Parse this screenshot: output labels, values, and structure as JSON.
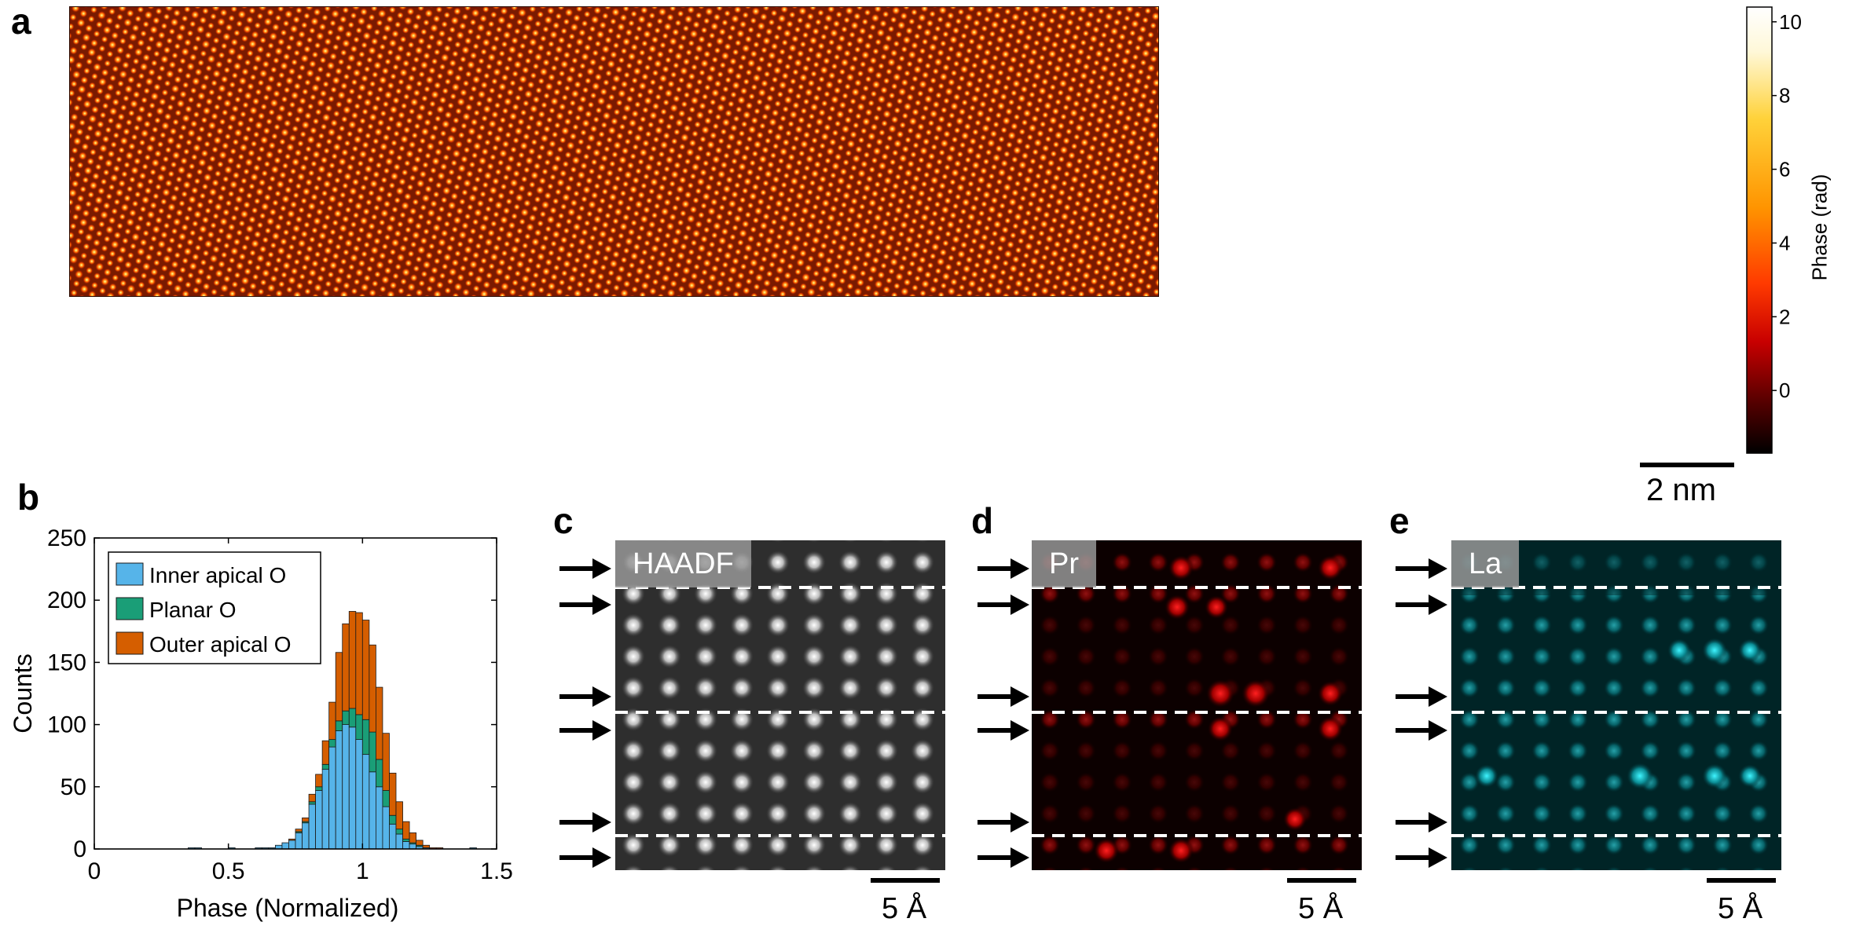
{
  "panels": {
    "a": {
      "letter": "a",
      "scalebar_label": "2 nm",
      "colorbar": {
        "label": "Phase (rad)",
        "ticks": [
          "10",
          "8",
          "6",
          "4",
          "2",
          "0"
        ],
        "tick_values": [
          10,
          8,
          6,
          4,
          2,
          0
        ],
        "range": [
          -1.7,
          10.4
        ]
      }
    },
    "b": {
      "letter": "b"
    },
    "c": {
      "letter": "c",
      "image_label": "HAADF",
      "scalebar_label": "5 Å"
    },
    "d": {
      "letter": "d",
      "image_label": "Pr",
      "scalebar_label": "5 Å"
    },
    "e": {
      "letter": "e",
      "image_label": "La",
      "scalebar_label": "5 Å"
    }
  },
  "chart_data": {
    "type": "bar",
    "stacked": true,
    "xlabel": "Phase (Normalized)",
    "ylabel": "Counts",
    "xlim": [
      0,
      1.5
    ],
    "ylim": [
      0,
      250
    ],
    "xticks": [
      "0",
      "0.5",
      "1",
      "1.5"
    ],
    "xtick_values": [
      0,
      0.5,
      1,
      1.5
    ],
    "yticks": [
      "0",
      "50",
      "100",
      "150",
      "200",
      "250"
    ],
    "ytick_values": [
      0,
      50,
      100,
      150,
      200,
      250
    ],
    "legend_position": "top-left",
    "bin_width": 0.025,
    "bin_starts": [
      0.35,
      0.375,
      0.4,
      0.425,
      0.45,
      0.475,
      0.5,
      0.525,
      0.55,
      0.575,
      0.6,
      0.625,
      0.65,
      0.675,
      0.7,
      0.725,
      0.75,
      0.775,
      0.8,
      0.825,
      0.85,
      0.875,
      0.9,
      0.925,
      0.95,
      0.975,
      1.0,
      1.025,
      1.05,
      1.075,
      1.1,
      1.125,
      1.15,
      1.175,
      1.2,
      1.225,
      1.25,
      1.275,
      1.3,
      1.325,
      1.35,
      1.375,
      1.4
    ],
    "series": [
      {
        "name": "Inner apical O",
        "color": "#56b4e9",
        "values": [
          1,
          1,
          0,
          0,
          0,
          0,
          1,
          0,
          0,
          0,
          1,
          1,
          1,
          3,
          5,
          7,
          13,
          21,
          36,
          47,
          64,
          82,
          95,
          100,
          98,
          88,
          76,
          62,
          50,
          34,
          20,
          12,
          6,
          4,
          2,
          1,
          0,
          0,
          0,
          0,
          0,
          0,
          1
        ]
      },
      {
        "name": "Planar O",
        "color": "#1a9e77",
        "values": [
          0,
          0,
          0,
          0,
          0,
          0,
          0,
          0,
          0,
          0,
          0,
          0,
          0,
          0,
          0,
          0,
          1,
          1,
          2,
          3,
          4,
          6,
          8,
          11,
          15,
          20,
          28,
          32,
          22,
          13,
          7,
          4,
          2,
          1,
          1,
          0,
          0,
          0,
          0,
          0,
          0,
          0,
          0
        ]
      },
      {
        "name": "Outer apical O",
        "color": "#d55e00",
        "values": [
          0,
          0,
          0,
          0,
          0,
          0,
          0,
          0,
          0,
          0,
          0,
          0,
          0,
          0,
          0,
          1,
          2,
          3,
          6,
          10,
          19,
          30,
          55,
          70,
          78,
          82,
          80,
          70,
          58,
          46,
          34,
          22,
          14,
          8,
          4,
          2,
          1,
          1,
          0,
          0,
          0,
          0,
          0
        ]
      }
    ]
  },
  "colors": {
    "hot_colormap": [
      "#000000",
      "#5a0000",
      "#c80000",
      "#ff3a00",
      "#ff9400",
      "#ffd23a",
      "#fff8d8",
      "#ffffff"
    ],
    "haadf": "#ffffff",
    "pr": "#ff1010",
    "la": "#22e8f0"
  }
}
